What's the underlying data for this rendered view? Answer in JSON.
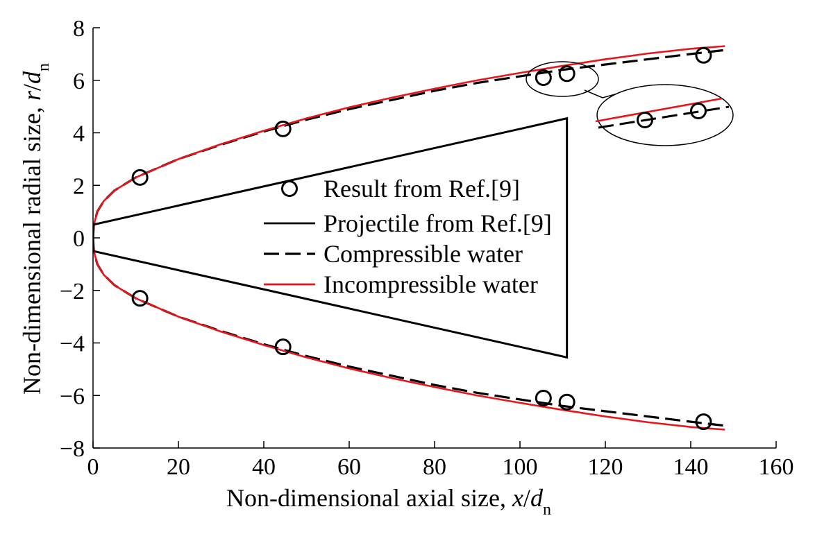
{
  "chart_data": {
    "type": "line",
    "title": "",
    "xlabel": {
      "prefix": "Non-dimensional axial size, ",
      "var": "x",
      "slash": "/",
      "sym": "d",
      "sub": "n"
    },
    "ylabel": {
      "prefix": "Non-dimensional radial size, ",
      "var": "r",
      "slash": "/",
      "sym": "d",
      "sub": "n"
    },
    "xlim": [
      0,
      160
    ],
    "ylim": [
      -8,
      8
    ],
    "xticks": [
      0,
      20,
      40,
      60,
      80,
      100,
      120,
      140,
      160
    ],
    "yticks": [
      -8,
      -6,
      -4,
      -2,
      0,
      2,
      4,
      6,
      8
    ],
    "xtick_labels": [
      "0",
      "20",
      "40",
      "60",
      "80",
      "100",
      "120",
      "140",
      "160"
    ],
    "ytick_labels": [
      "−8",
      "−6",
      "−4",
      "−2",
      "0",
      "2",
      "4",
      "6",
      "8"
    ],
    "grid": false,
    "legend_position": "center",
    "series": [
      {
        "name": "Result from Ref.[9]",
        "kind": "markers",
        "marker": "circle",
        "color": "#000000",
        "x": [
          11,
          44.5,
          105.5,
          111,
          143,
          11,
          44.5,
          105.5,
          111,
          143
        ],
        "y": [
          2.3,
          4.15,
          6.1,
          6.25,
          6.95,
          -2.3,
          -4.15,
          -6.1,
          -6.25,
          -7.0
        ]
      },
      {
        "name": "Projectile from Ref.[9]",
        "kind": "line",
        "style": "solid",
        "color": "#000000",
        "x": [
          0,
          111,
          111,
          0,
          0
        ],
        "y": [
          0.5,
          4.55,
          -4.55,
          -0.5,
          0.5
        ]
      },
      {
        "name": "Compressible water",
        "kind": "line",
        "style": "dashed",
        "color": "#000000",
        "x": [
          0,
          0.2,
          1,
          2.5,
          5,
          10,
          20,
          30,
          40,
          50,
          60,
          70,
          80,
          90,
          100,
          110,
          120,
          130,
          140,
          148
        ],
        "y": [
          0,
          0.5,
          1.0,
          1.4,
          1.8,
          2.3,
          3.0,
          3.55,
          4.05,
          4.5,
          4.9,
          5.25,
          5.6,
          5.9,
          6.15,
          6.4,
          6.6,
          6.8,
          7.0,
          7.15
        ]
      },
      {
        "name": "Incompressible water",
        "kind": "line",
        "style": "solid",
        "color": "#e8161c",
        "x": [
          0,
          0.2,
          1,
          2.5,
          5,
          10,
          20,
          30,
          40,
          50,
          60,
          70,
          80,
          90,
          100,
          110,
          120,
          130,
          140,
          148
        ],
        "y": [
          0,
          0.5,
          1.0,
          1.4,
          1.8,
          2.3,
          3.0,
          3.57,
          4.08,
          4.55,
          4.97,
          5.34,
          5.68,
          6.0,
          6.28,
          6.55,
          6.8,
          7.02,
          7.2,
          7.3
        ]
      }
    ],
    "annotations": [
      {
        "type": "zoom-inset",
        "note": "magnified view of the upper-right region near x≈105–111"
      }
    ]
  }
}
